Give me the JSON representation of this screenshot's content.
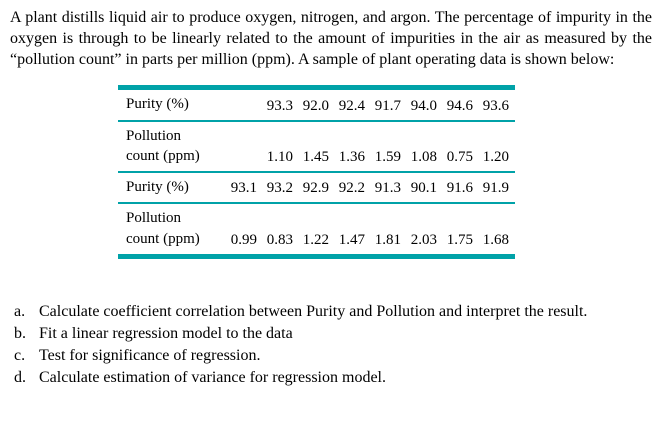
{
  "intro": {
    "text": "A plant distills liquid air to produce oxygen, nitrogen, and argon. The percentage of impurity in the oxygen is through to be linearly related to the amount of impurities in the air as measured by the “pollution count” in parts per million (ppm). A sample of plant operating data is shown below:"
  },
  "table": {
    "accent_color": "#00A2A8",
    "rows": [
      {
        "label": "Purity (%)",
        "label2": "",
        "values": [
          "93.3",
          "92.0",
          "92.4",
          "91.7",
          "94.0",
          "94.6",
          "93.6"
        ]
      },
      {
        "label": "Pollution",
        "label2": "count (ppm)",
        "values": [
          "1.10",
          "1.45",
          "1.36",
          "1.59",
          "1.08",
          "0.75",
          "1.20"
        ]
      },
      {
        "label": "Purity (%)",
        "label2": "",
        "values": [
          "93.1",
          "93.2",
          "92.9",
          "92.2",
          "91.3",
          "90.1",
          "91.6",
          "91.9"
        ]
      },
      {
        "label": "Pollution",
        "label2": "count (ppm)",
        "values": [
          "0.99",
          "0.83",
          "1.22",
          "1.47",
          "1.81",
          "2.03",
          "1.75",
          "1.68"
        ]
      }
    ]
  },
  "questions": [
    {
      "marker": "a.",
      "text": "Calculate coefficient correlation between Purity and Pollution and interpret the result."
    },
    {
      "marker": "b.",
      "text": "Fit a linear regression model to the data"
    },
    {
      "marker": "c.",
      "text": "Test for significance of regression."
    },
    {
      "marker": "d.",
      "text": "Calculate estimation of variance for regression model."
    }
  ]
}
